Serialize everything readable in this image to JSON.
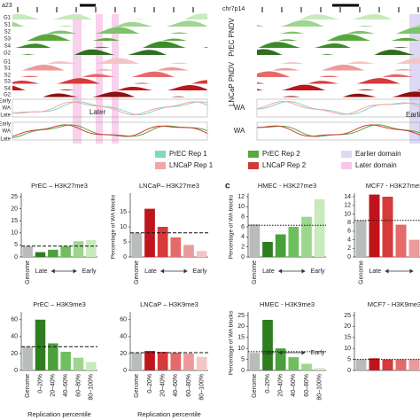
{
  "tracks": {
    "left": {
      "title": "a23",
      "rows": [
        "G1",
        "S1",
        "S2",
        "S3",
        "S4",
        "G2",
        "G1",
        "S1",
        "S2",
        "S3",
        "S4",
        "G2",
        "Early",
        "WA",
        "Late",
        "Early",
        "WA",
        "Late"
      ],
      "annotation": "Later"
    },
    "right": {
      "title": "chr7p14",
      "groups": [
        "PrEC PNDV",
        "LNCaP PNDV",
        "WA",
        "WA"
      ],
      "annotation": "Earli"
    }
  },
  "legend": [
    {
      "name": "PrEC Rep 1",
      "color": "#7fd8c4"
    },
    {
      "name": "PrEC Rep 2",
      "color": "#5aa83c"
    },
    {
      "name": "Earlier domain",
      "color": "#ddd8f3"
    },
    {
      "name": "LNCaP Rep 1",
      "color": "#f4a6a6"
    },
    {
      "name": "LNCaP Rep 2",
      "color": "#cf3a3a"
    },
    {
      "name": "Later domain",
      "color": "#f7c6e8"
    }
  ],
  "panel_label": "c",
  "chart_data": [
    {
      "type": "bar",
      "title": "PrEC – H3K27me3",
      "categories": [
        "Genome",
        null,
        null,
        null,
        null,
        null
      ],
      "values": [
        4.5,
        2,
        3,
        4.5,
        6.5,
        7
      ],
      "colors": [
        "#b8bcbc",
        "#2e7d1e",
        "#4aa03a",
        "#6fbf5f",
        "#9ed68f",
        "#c8eabc"
      ],
      "ylim": [
        0,
        25
      ],
      "yticks": [
        0,
        5,
        10,
        15,
        20,
        25
      ],
      "ref_line": 4.5,
      "ref_style": "dashed",
      "annotations": [
        "Late",
        "Early"
      ]
    },
    {
      "type": "bar",
      "title": "LNCaP– H3K27me3",
      "ylabel": "Percentage of WA blocks",
      "categories": [
        "Genome",
        null,
        null,
        null,
        null,
        null
      ],
      "values": [
        8,
        16,
        10,
        6.5,
        4,
        2
      ],
      "colors": [
        "#b8bcbc",
        "#c0141c",
        "#d63a3a",
        "#e56a6a",
        "#ee9a9a",
        "#f5c4c4"
      ],
      "ylim": [
        0,
        20
      ],
      "yticks": [
        0,
        5,
        10,
        15
      ],
      "ref_line": 8,
      "ref_style": "dashed",
      "annotations": [
        "Late",
        "Early"
      ]
    },
    {
      "type": "bar",
      "title": "HMEC - H3K27me3",
      "ylabel": "Percentage of WA blocks",
      "categories": [
        "Genome",
        null,
        null,
        null,
        null,
        null
      ],
      "values": [
        6.5,
        3,
        4.5,
        6,
        8,
        11.5
      ],
      "colors": [
        "#b8bcbc",
        "#2e7d1e",
        "#4aa03a",
        "#6fbf5f",
        "#9ed68f",
        "#c8eabc"
      ],
      "ylim": [
        0,
        12
      ],
      "yticks": [
        0,
        2,
        4,
        6,
        8,
        10,
        12
      ],
      "ref_line": 6.3,
      "ref_style": "dotted",
      "annotations": [
        "Late",
        "Early"
      ]
    },
    {
      "type": "bar",
      "title": "MCF7 - H3K27me3",
      "categories": [
        "Genome",
        null,
        null,
        null,
        null
      ],
      "values": [
        8.5,
        14.5,
        14,
        7.5,
        4
      ],
      "colors": [
        "#b8bcbc",
        "#c0141c",
        "#d63a3a",
        "#e56a6a",
        "#ee9a9a"
      ],
      "ylim": [
        0,
        14
      ],
      "yticks": [
        0,
        2,
        4,
        6,
        8,
        10,
        12,
        14
      ],
      "ref_line": 8.5,
      "ref_style": "dotted",
      "annotations": [
        "Late"
      ]
    },
    {
      "type": "bar",
      "title": "PrEC – H3K9me3",
      "xlabel": "Replication percentile",
      "categories": [
        "Genome",
        "0–20%",
        "20–40%",
        "40–60%",
        "60–80%",
        "80–100%"
      ],
      "values": [
        28,
        60,
        32,
        22,
        15,
        10
      ],
      "colors": [
        "#b8bcbc",
        "#2e7d1e",
        "#4aa03a",
        "#6fbf5f",
        "#9ed68f",
        "#c8eabc"
      ],
      "ylim": [
        0,
        65
      ],
      "yticks": [
        0,
        20,
        40,
        60
      ],
      "ref_line": 28,
      "ref_style": "dashed"
    },
    {
      "type": "bar",
      "title": "LNCaP – H3K9me3",
      "xlabel": "Replication percentile",
      "categories": [
        "Genome",
        "0–20%",
        "20–40%",
        "40–60%",
        "60–80%",
        "80–100%"
      ],
      "values": [
        21,
        23,
        22,
        21,
        20,
        16
      ],
      "colors": [
        "#b8bcbc",
        "#c0141c",
        "#d63a3a",
        "#e56a6a",
        "#ee9a9a",
        "#f5c4c4"
      ],
      "ylim": [
        0,
        65
      ],
      "yticks": [
        0,
        20,
        40,
        60
      ],
      "ref_line": 21,
      "ref_style": "dashed"
    },
    {
      "type": "bar",
      "title": "HMEC - H3K9me3",
      "ylabel": "Percentage of WA blocks",
      "categories": [
        "Genome",
        "0–20%",
        "20–40%",
        "40–60%",
        "60–80%",
        "80–100%"
      ],
      "values": [
        8,
        23,
        10,
        6,
        3,
        1
      ],
      "colors": [
        "#b8bcbc",
        "#2e7d1e",
        "#4aa03a",
        "#6fbf5f",
        "#9ed68f",
        "#c8eabc"
      ],
      "ylim": [
        0,
        25
      ],
      "yticks": [
        0,
        5,
        10,
        15,
        20,
        25
      ],
      "ref_line": 8.5,
      "ref_style": "dotted",
      "annotations": [
        "Late",
        "Early"
      ]
    },
    {
      "type": "bar",
      "title": "MCF7 - H3K9me3",
      "categories": [
        null,
        null,
        null,
        null,
        null
      ],
      "values": [
        5,
        5.5,
        5,
        5,
        5
      ],
      "colors": [
        "#b8bcbc",
        "#c0141c",
        "#d63a3a",
        "#e56a6a",
        "#ee9a9a"
      ],
      "ylim": [
        0,
        25
      ],
      "yticks": [
        0,
        5,
        10,
        15,
        20,
        25
      ],
      "ref_line": 5,
      "ref_style": "dotted"
    }
  ]
}
